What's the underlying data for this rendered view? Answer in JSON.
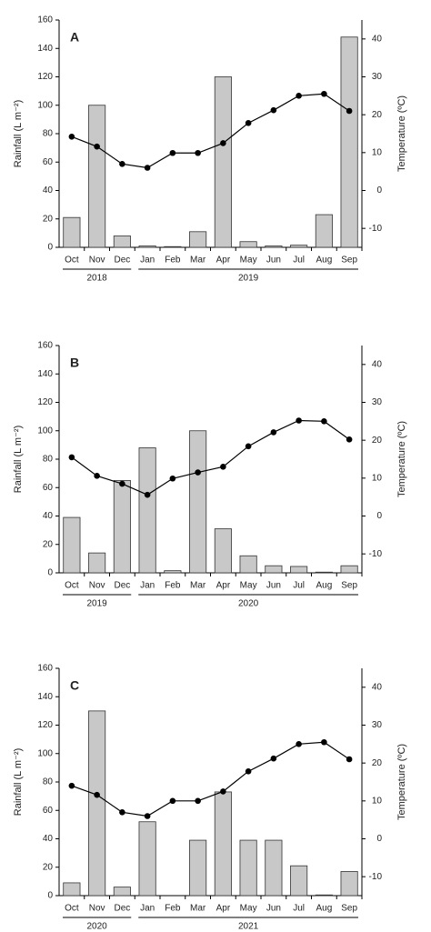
{
  "chart_data": [
    {
      "type": "bar_line",
      "title": "A",
      "ylabel": "Rainfall (L m⁻²)",
      "y2label": "Temperature (ºC)",
      "category_groups": [
        {
          "label": "2018",
          "categories": [
            "Oct",
            "Nov",
            "Dec"
          ]
        },
        {
          "label": "2019",
          "categories": [
            "Jan",
            "Feb",
            "Mar",
            "Apr",
            "May",
            "Jun",
            "Jul",
            "Aug",
            "Sep"
          ]
        }
      ],
      "series": [
        {
          "type": "bar",
          "color": "#c8c8c8",
          "values": [
            21,
            100,
            8,
            1,
            0.5,
            11,
            120,
            4,
            1,
            1.5,
            23,
            148
          ]
        },
        {
          "type": "line",
          "axis": "y2",
          "color": "#000000",
          "values": [
            14.2,
            11.6,
            7,
            6,
            9.9,
            9.9,
            12.5,
            17.8,
            21.2,
            25,
            25.5,
            21
          ]
        }
      ],
      "ylim": [
        0,
        160
      ],
      "yticks": [
        0,
        20,
        40,
        60,
        80,
        100,
        120,
        140,
        160
      ],
      "y2lim": [
        -15,
        45
      ],
      "y2ticks": [
        -10,
        0,
        10,
        20,
        30,
        40
      ]
    },
    {
      "type": "bar_line",
      "title": "B",
      "ylabel": "Rainfall (L m⁻²)",
      "y2label": "Temperature (ºC)",
      "category_groups": [
        {
          "label": "2019",
          "categories": [
            "Oct",
            "Nov",
            "Dec"
          ]
        },
        {
          "label": "2020",
          "categories": [
            "Jan",
            "Feb",
            "Mar",
            "Apr",
            "May",
            "Jun",
            "Jul",
            "Aug",
            "Sep"
          ]
        }
      ],
      "series": [
        {
          "type": "bar",
          "color": "#c8c8c8",
          "values": [
            39,
            14,
            65,
            88,
            1.5,
            100,
            31,
            12,
            5,
            4.5,
            0.5,
            5
          ]
        },
        {
          "type": "line",
          "axis": "y2",
          "color": "#000000",
          "values": [
            15.5,
            10.6,
            8.5,
            5.6,
            9.9,
            11.5,
            13,
            18.4,
            22.1,
            25.2,
            25,
            20.2
          ]
        }
      ],
      "ylim": [
        0,
        160
      ],
      "yticks": [
        0,
        20,
        40,
        60,
        80,
        100,
        120,
        140,
        160
      ],
      "y2lim": [
        -15,
        45
      ],
      "y2ticks": [
        -10,
        0,
        10,
        20,
        30,
        40
      ]
    },
    {
      "type": "bar_line",
      "title": "C",
      "ylabel": "Rainfall (L m⁻²)",
      "y2label": "Temperature (ºC)",
      "category_groups": [
        {
          "label": "2020",
          "categories": [
            "Oct",
            "Nov",
            "Dec"
          ]
        },
        {
          "label": "2021",
          "categories": [
            "Jan",
            "Feb",
            "Mar",
            "Apr",
            "May",
            "Jun",
            "Jul",
            "Aug",
            "Sep"
          ]
        }
      ],
      "series": [
        {
          "type": "bar",
          "color": "#c8c8c8",
          "values": [
            9,
            130,
            6,
            52,
            0,
            39,
            73,
            39,
            39,
            21,
            0.5,
            17
          ]
        },
        {
          "type": "line",
          "axis": "y2",
          "color": "#000000",
          "values": [
            14,
            11.6,
            7,
            6,
            10,
            10,
            12.5,
            17.8,
            21.2,
            25,
            25.5,
            21
          ]
        }
      ],
      "ylim": [
        0,
        160
      ],
      "yticks": [
        0,
        20,
        40,
        60,
        80,
        100,
        120,
        140,
        160
      ],
      "y2lim": [
        -15,
        45
      ],
      "y2ticks": [
        -10,
        0,
        10,
        20,
        30,
        40
      ]
    }
  ]
}
